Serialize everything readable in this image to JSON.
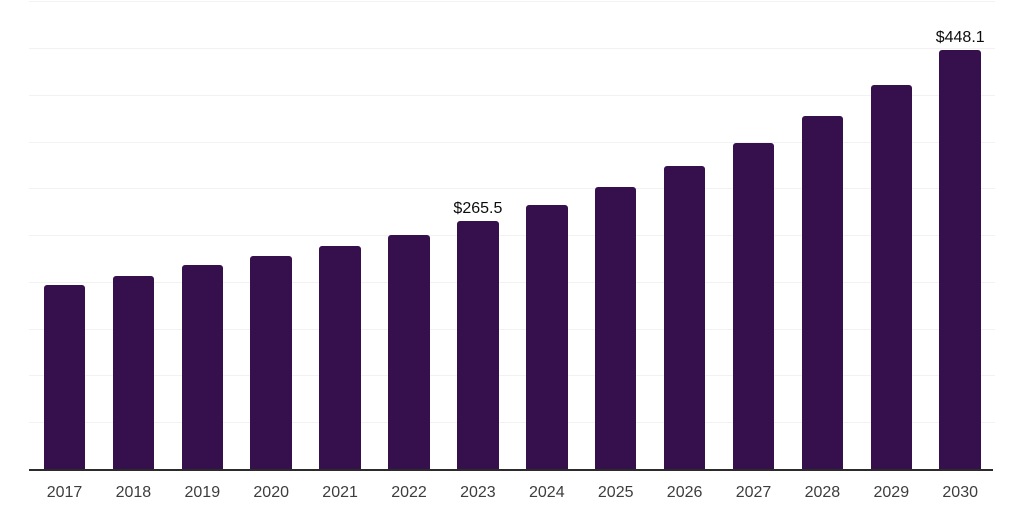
{
  "chart_data": {
    "type": "bar",
    "title": "",
    "xlabel": "",
    "ylabel": "",
    "categories": [
      "2017",
      "2018",
      "2019",
      "2020",
      "2021",
      "2022",
      "2023",
      "2024",
      "2025",
      "2026",
      "2027",
      "2028",
      "2029",
      "2030"
    ],
    "values": [
      196.2,
      206.7,
      217.6,
      228.0,
      238.7,
      249.7,
      265.5,
      281.8,
      301.8,
      323.9,
      348.0,
      377.7,
      410.5,
      448.1
    ],
    "labeled_points": [
      {
        "category": "2023",
        "label": "$265.5"
      },
      {
        "category": "2030",
        "label": "$448.1"
      }
    ],
    "ylim": [
      0,
      500
    ],
    "gridline_step": 50,
    "grid": true,
    "y_axis_labels_visible": false,
    "legend": false,
    "colors": {
      "bar": "#36104D",
      "gridline": "#f2f2f2",
      "axis_line": "#2b2b2b",
      "tick_label": "#3d3d3d",
      "value_label": "#0d0d0d",
      "background": "#ffffff"
    }
  }
}
